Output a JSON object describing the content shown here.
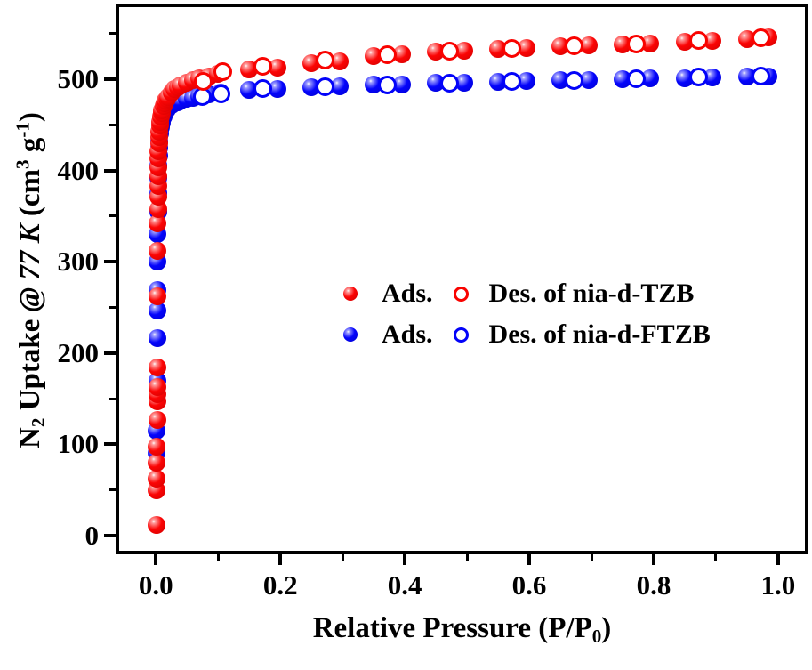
{
  "figure": {
    "background": "#ffffff",
    "axis_color": "#000000",
    "red": "#ff0000",
    "blue": "#0000ff"
  },
  "legend": {
    "position": "center-right",
    "rows": [
      {
        "color": "#ff0000",
        "ads_label": "Ads.",
        "des_label": "Des. of nia-d-TZB"
      },
      {
        "color": "#0000ff",
        "ads_label": "Ads.",
        "des_label": "Des. of nia-d-FTZB"
      }
    ]
  },
  "chart_data": {
    "type": "scatter",
    "title": "",
    "xlabel": "Relative Pressure (P/P0)",
    "ylabel": "N2 Uptake @ 77 K (cm3 g-1)",
    "xlabel_parts": [
      {
        "t": "Relative Pressure (P/P"
      },
      {
        "t": "0",
        "sub": true
      },
      {
        "t": ")"
      }
    ],
    "ylabel_parts": [
      {
        "t": "N"
      },
      {
        "t": "2",
        "sub": true
      },
      {
        "t": " Uptake "
      },
      {
        "t": "@ 77 K",
        "italic": true
      },
      {
        "t": " (cm"
      },
      {
        "t": "3",
        "sup": true
      },
      {
        "t": " g"
      },
      {
        "t": "-1",
        "sup": true
      },
      {
        "t": ")"
      }
    ],
    "xlim": [
      -0.059,
      1.043
    ],
    "ylim": [
      -20.5,
      579
    ],
    "grid": false,
    "x_ticks": [
      {
        "v": 0.0,
        "label": "0.0"
      },
      {
        "v": 0.2,
        "label": "0.2"
      },
      {
        "v": 0.4,
        "label": "0.4"
      },
      {
        "v": 0.6,
        "label": "0.6"
      },
      {
        "v": 0.8,
        "label": "0.8"
      },
      {
        "v": 1.0,
        "label": "1.0"
      }
    ],
    "x_minor_ticks": [
      0.1,
      0.3,
      0.5,
      0.7,
      0.9
    ],
    "y_ticks": [
      {
        "v": 0,
        "label": "0"
      },
      {
        "v": 100,
        "label": "100"
      },
      {
        "v": 200,
        "label": "200"
      },
      {
        "v": 300,
        "label": "300"
      },
      {
        "v": 400,
        "label": "400"
      },
      {
        "v": 500,
        "label": "500"
      }
    ],
    "y_minor_ticks": [
      50,
      150,
      250,
      350,
      450,
      550
    ],
    "series": [
      {
        "name": "Ads. of nia-d-FTZB",
        "marker": "filled",
        "color": "#0000ff",
        "points": [
          [
            0.0012,
            91
          ],
          [
            0.0015,
            115
          ],
          [
            0.0018,
            170
          ],
          [
            0.0022,
            216
          ],
          [
            0.0024,
            247
          ],
          [
            0.0026,
            269
          ],
          [
            0.0028,
            300
          ],
          [
            0.003,
            330
          ],
          [
            0.0033,
            355
          ],
          [
            0.0036,
            375
          ],
          [
            0.004,
            392
          ],
          [
            0.0044,
            405
          ],
          [
            0.005,
            416
          ],
          [
            0.0055,
            425
          ],
          [
            0.006,
            432
          ],
          [
            0.007,
            441
          ],
          [
            0.008,
            447
          ],
          [
            0.009,
            452
          ],
          [
            0.01,
            455
          ],
          [
            0.012,
            459
          ],
          [
            0.014,
            462
          ],
          [
            0.016,
            465
          ],
          [
            0.018,
            467
          ],
          [
            0.02,
            469
          ],
          [
            0.025,
            472
          ],
          [
            0.03,
            474
          ],
          [
            0.035,
            475
          ],
          [
            0.04,
            477
          ],
          [
            0.05,
            479
          ],
          [
            0.06,
            480
          ],
          [
            0.07,
            482
          ],
          [
            0.085,
            483
          ],
          [
            0.104,
            485
          ],
          [
            0.15,
            488
          ],
          [
            0.195,
            489
          ],
          [
            0.25,
            491
          ],
          [
            0.295,
            492
          ],
          [
            0.35,
            494
          ],
          [
            0.395,
            494
          ],
          [
            0.45,
            496
          ],
          [
            0.495,
            496
          ],
          [
            0.55,
            497
          ],
          [
            0.595,
            498
          ],
          [
            0.65,
            499
          ],
          [
            0.695,
            499
          ],
          [
            0.75,
            500
          ],
          [
            0.795,
            501
          ],
          [
            0.85,
            501
          ],
          [
            0.895,
            502
          ],
          [
            0.95,
            503
          ],
          [
            0.985,
            503
          ]
        ]
      },
      {
        "name": "Ads. of nia-d-TZB",
        "marker": "filled",
        "color": "#ff0000",
        "points": [
          [
            0.001,
            12
          ],
          [
            0.0012,
            50
          ],
          [
            0.0013,
            62
          ],
          [
            0.0015,
            80
          ],
          [
            0.0016,
            97
          ],
          [
            0.0018,
            127
          ],
          [
            0.002,
            147
          ],
          [
            0.0021,
            155
          ],
          [
            0.0022,
            163
          ],
          [
            0.0024,
            184
          ],
          [
            0.0026,
            262
          ],
          [
            0.0028,
            312
          ],
          [
            0.003,
            342
          ],
          [
            0.0032,
            358
          ],
          [
            0.0034,
            371
          ],
          [
            0.0036,
            383
          ],
          [
            0.0038,
            394
          ],
          [
            0.004,
            404
          ],
          [
            0.0042,
            413
          ],
          [
            0.0045,
            421
          ],
          [
            0.005,
            430
          ],
          [
            0.0055,
            437
          ],
          [
            0.006,
            443
          ],
          [
            0.0065,
            449
          ],
          [
            0.007,
            453
          ],
          [
            0.008,
            459
          ],
          [
            0.009,
            463
          ],
          [
            0.01,
            466
          ],
          [
            0.012,
            471
          ],
          [
            0.014,
            474
          ],
          [
            0.016,
            477
          ],
          [
            0.018,
            479
          ],
          [
            0.02,
            481
          ],
          [
            0.025,
            485
          ],
          [
            0.03,
            489
          ],
          [
            0.035,
            491
          ],
          [
            0.04,
            493
          ],
          [
            0.05,
            496
          ],
          [
            0.06,
            499
          ],
          [
            0.07,
            501
          ],
          [
            0.085,
            503
          ],
          [
            0.1,
            506
          ],
          [
            0.15,
            511
          ],
          [
            0.195,
            513
          ],
          [
            0.25,
            518
          ],
          [
            0.295,
            520
          ],
          [
            0.35,
            525
          ],
          [
            0.395,
            527
          ],
          [
            0.45,
            530
          ],
          [
            0.495,
            531
          ],
          [
            0.55,
            533
          ],
          [
            0.595,
            534
          ],
          [
            0.65,
            536
          ],
          [
            0.695,
            537
          ],
          [
            0.75,
            538
          ],
          [
            0.795,
            539
          ],
          [
            0.85,
            541
          ],
          [
            0.895,
            542
          ],
          [
            0.95,
            544
          ],
          [
            0.985,
            546
          ]
        ]
      },
      {
        "name": "Des. of nia-d-FTZB",
        "marker": "open",
        "color": "#0000ff",
        "points": [
          [
            0.074,
            481
          ],
          [
            0.104,
            484
          ],
          [
            0.172,
            490
          ],
          [
            0.272,
            492
          ],
          [
            0.372,
            494
          ],
          [
            0.472,
            496
          ],
          [
            0.572,
            498
          ],
          [
            0.672,
            499
          ],
          [
            0.772,
            501
          ],
          [
            0.872,
            502
          ],
          [
            0.972,
            503
          ]
        ]
      },
      {
        "name": "Des. of nia-d-TZB",
        "marker": "open",
        "color": "#ff0000",
        "points": [
          [
            0.076,
            498
          ],
          [
            0.107,
            508
          ],
          [
            0.172,
            514
          ],
          [
            0.272,
            521
          ],
          [
            0.372,
            527
          ],
          [
            0.472,
            531
          ],
          [
            0.572,
            534
          ],
          [
            0.672,
            537
          ],
          [
            0.772,
            539
          ],
          [
            0.872,
            542
          ],
          [
            0.972,
            545
          ]
        ]
      }
    ]
  }
}
